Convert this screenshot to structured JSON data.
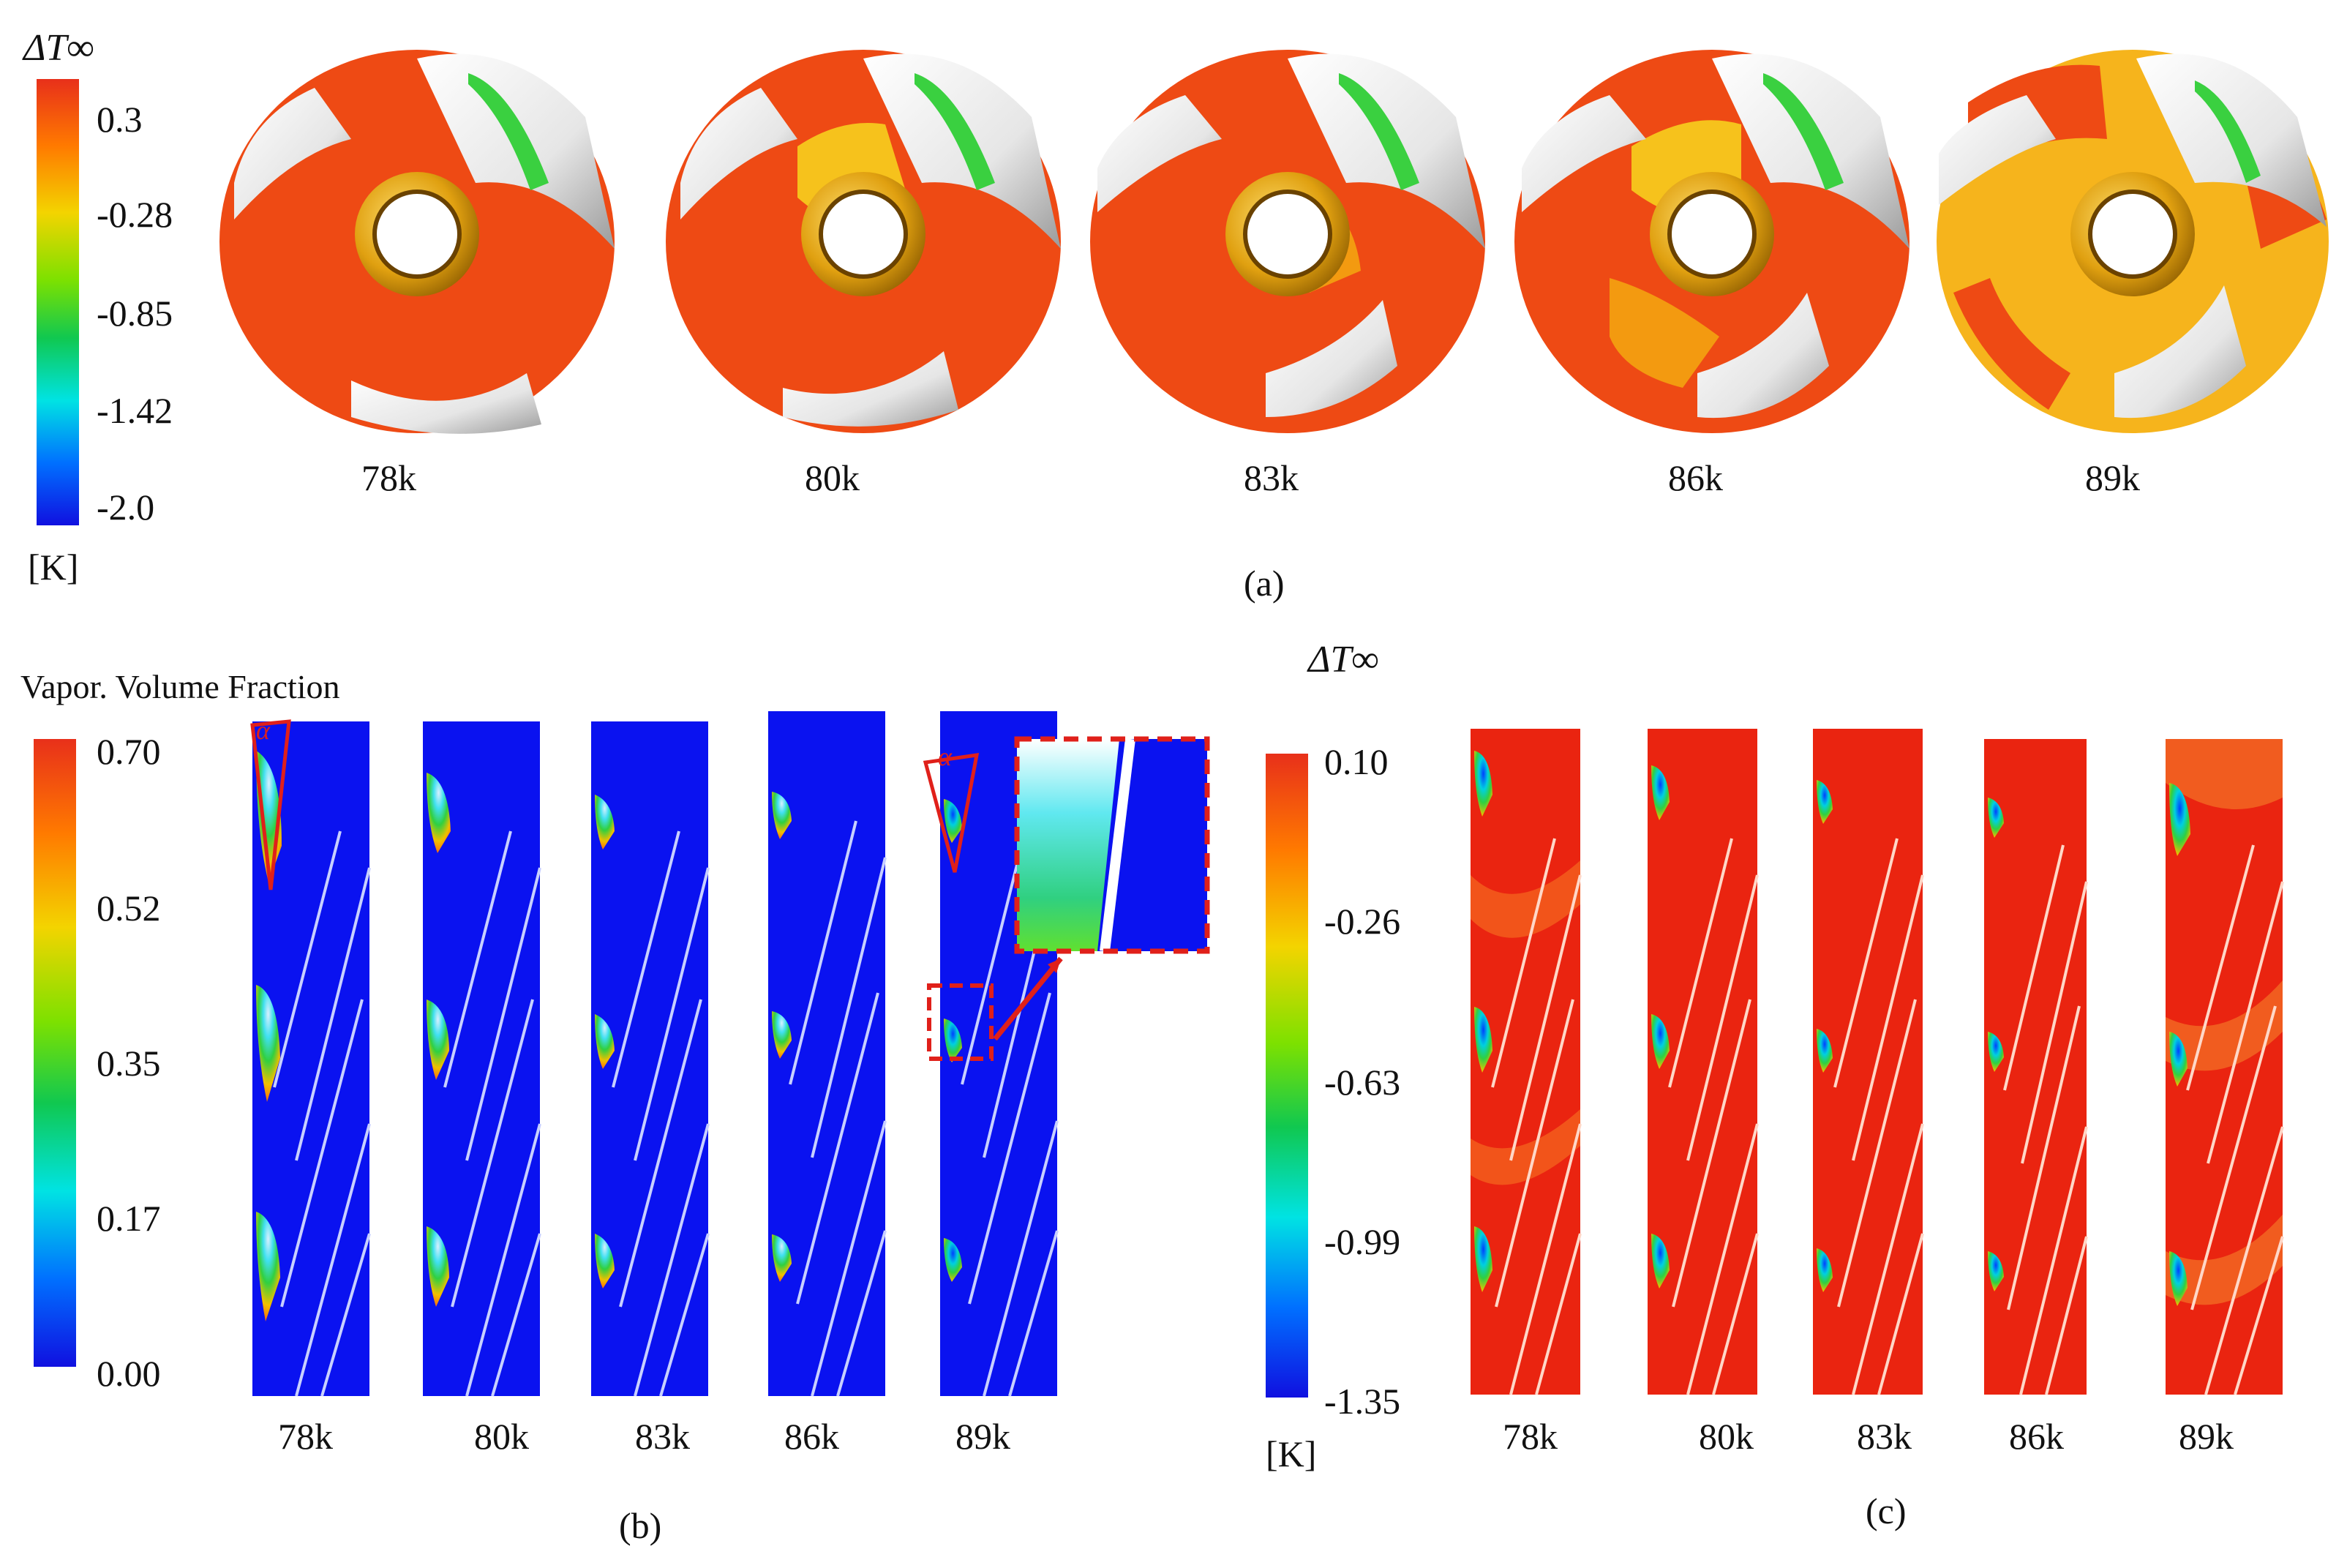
{
  "panel_a": {
    "legend": {
      "title": "ΔT∞",
      "unit": "[K]",
      "ticks": [
        "0.3",
        "-0.28",
        "-0.85",
        "-1.42",
        "-2.0"
      ],
      "gradient": [
        "#e8301a",
        "#ff7a00",
        "#f3d400",
        "#7de100",
        "#10c850",
        "#00e3e3",
        "#0070ff",
        "#1010e0"
      ]
    },
    "frames": [
      "78k",
      "80k",
      "83k",
      "86k",
      "89k"
    ],
    "caption": "(a)"
  },
  "panel_b": {
    "legend": {
      "title": "Vapor. Volume Fraction",
      "ticks": [
        "0.70",
        "0.52",
        "0.35",
        "0.17",
        "0.00"
      ],
      "gradient": [
        "#e8301a",
        "#ff7a00",
        "#f3d400",
        "#7de100",
        "#10c850",
        "#00e3e3",
        "#0070ff",
        "#1010e0"
      ]
    },
    "frames": [
      "78k",
      "80k",
      "83k",
      "86k",
      "89k"
    ],
    "angle_symbol": "α",
    "caption": "(b)"
  },
  "panel_c": {
    "legend": {
      "title": "ΔT∞",
      "unit": "[K]",
      "ticks": [
        "0.10",
        "-0.26",
        "-0.63",
        "-0.99",
        "-1.35"
      ],
      "gradient": [
        "#e8301a",
        "#ff7a00",
        "#f3d400",
        "#7de100",
        "#10c850",
        "#00e3e3",
        "#0070ff",
        "#1010e0"
      ]
    },
    "frames": [
      "78k",
      "80k",
      "83k",
      "86k",
      "89k"
    ],
    "caption": "(c)"
  },
  "colors": {
    "impeller_red": "#ee4a14",
    "impeller_orange": "#f39a10",
    "impeller_yellow": "#f6c21c",
    "vapor_blue": "#0a12f0",
    "temp_red": "#ea2410",
    "annotation_red": "#e0201a"
  }
}
